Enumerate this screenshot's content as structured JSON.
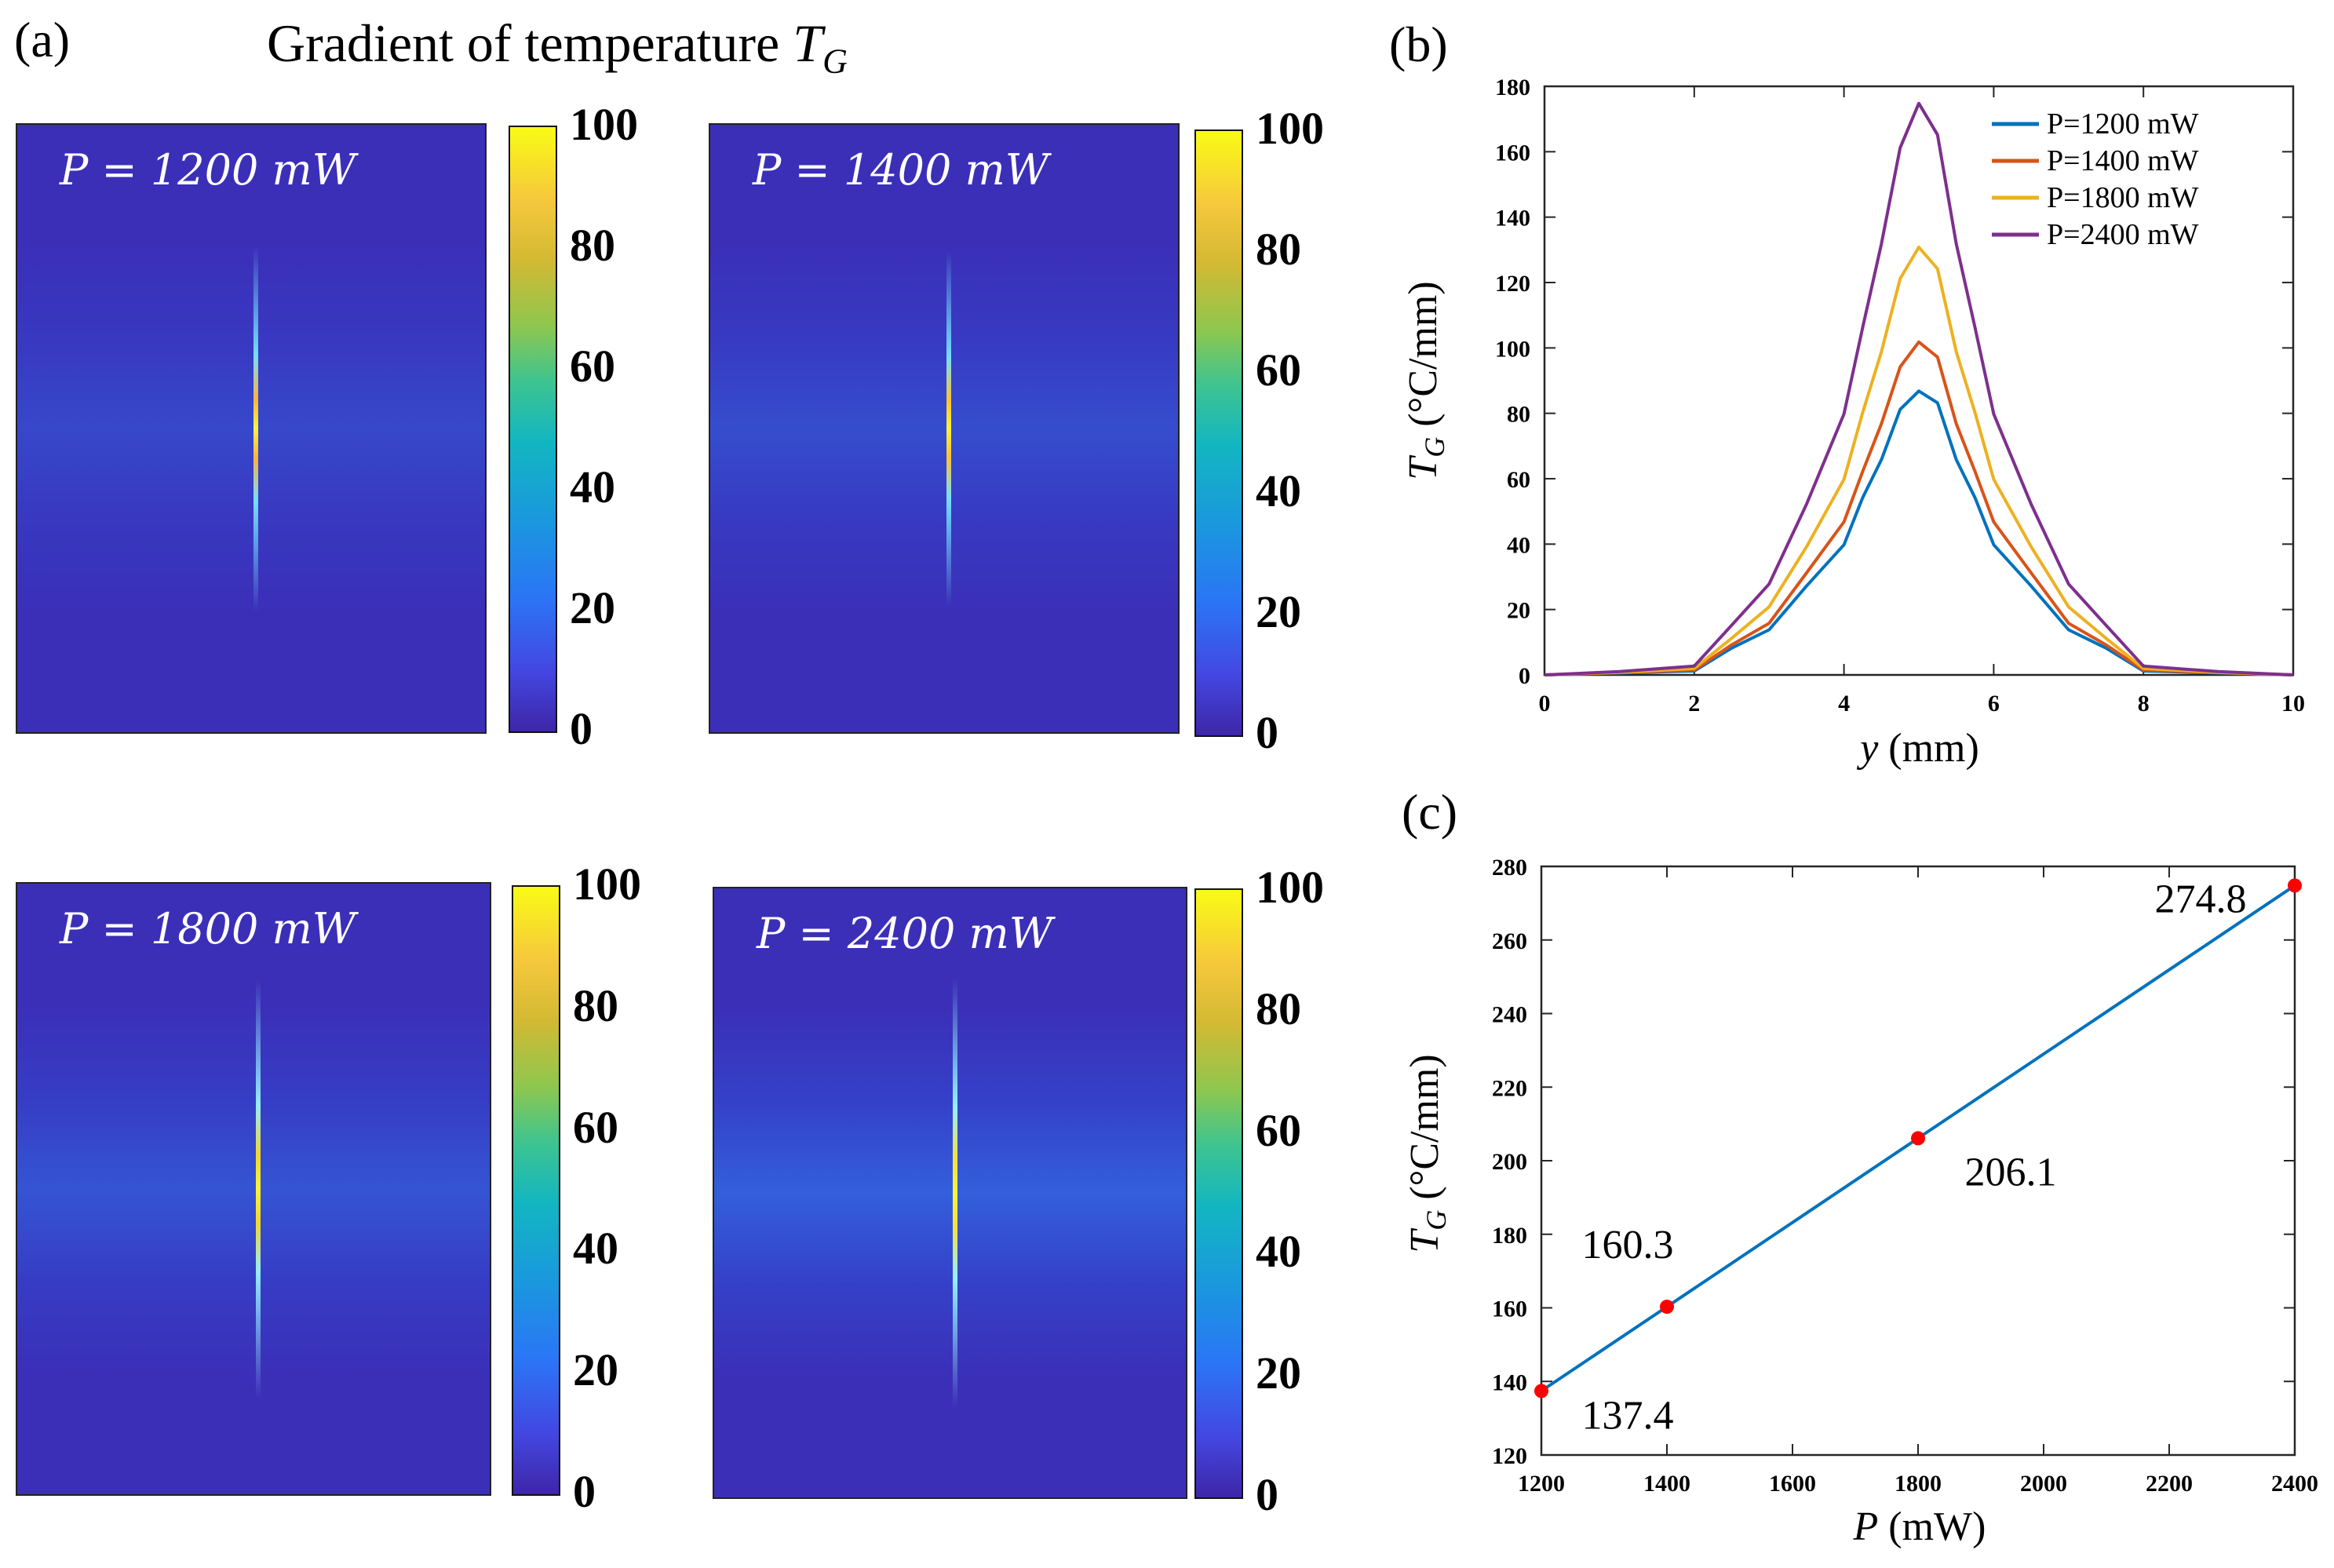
{
  "panel_a": {
    "label": "(a)",
    "title": "Gradient of temperature ",
    "title_var": "T",
    "title_sub": "G",
    "colorbar_ticks": [
      "100",
      "80",
      "60",
      "40",
      "20",
      "0"
    ],
    "maps": [
      {
        "label": "P = 1200 mW",
        "P": 1200
      },
      {
        "label": "P = 1400 mW",
        "P": 1400
      },
      {
        "label": "P = 1800 mW",
        "P": 1800
      },
      {
        "label": "P = 2400 mW",
        "P": 2400
      }
    ]
  },
  "panel_b": {
    "label": "(b)"
  },
  "panel_c": {
    "label": "(c)"
  },
  "chart_data": [
    {
      "type": "line",
      "xlabel_var": "y",
      "xlabel": "(mm)",
      "ylabel_var": "T",
      "ylabel_sub": "G",
      "ylabel": "(°C/mm)",
      "xlim": [
        0,
        10
      ],
      "ylim": [
        0,
        180
      ],
      "xticks": [
        0,
        2,
        4,
        6,
        8,
        10
      ],
      "yticks": [
        0,
        20,
        40,
        60,
        80,
        100,
        120,
        140,
        160,
        180
      ],
      "legend_position": "top-right",
      "x": [
        0,
        1,
        2,
        2.5,
        3,
        3.5,
        4,
        4.25,
        4.5,
        4.75,
        5,
        5.25,
        5.5,
        5.75,
        6,
        6.5,
        7,
        7.5,
        8,
        9,
        10
      ],
      "series": [
        {
          "name": "P=1200 mW",
          "color": "#0072bd",
          "values": [
            0,
            0.6,
            1.2,
            7,
            15,
            26,
            41,
            53,
            67,
            80,
            88,
            82,
            67,
            53,
            41,
            26,
            15,
            7,
            1.2,
            0.6,
            0
          ]
        },
        {
          "name": "P=1400 mW",
          "color": "#d95319",
          "values": [
            0,
            0.7,
            1.5,
            8,
            17,
            30,
            48,
            61,
            78,
            93,
            103,
            96,
            78,
            61,
            48,
            30,
            17,
            8,
            1.5,
            0.7,
            0
          ]
        },
        {
          "name": "P=1800 mW",
          "color": "#edb120",
          "values": [
            0,
            0.8,
            2,
            10,
            22,
            38,
            61,
            79,
            100,
            120,
            132,
            123,
            100,
            79,
            61,
            38,
            22,
            10,
            2,
            0.8,
            0
          ]
        },
        {
          "name": "P=2400 mW",
          "color": "#7e2f8e",
          "values": [
            0,
            1,
            2.7,
            14,
            29,
            51,
            81,
            105,
            133,
            160,
            176,
            164,
            133,
            105,
            81,
            51,
            29,
            14,
            2.7,
            1,
            0
          ]
        }
      ]
    },
    {
      "type": "line",
      "xlabel_var": "P",
      "xlabel": "(mW)",
      "ylabel_var": "T",
      "ylabel_sub": "G",
      "ylabel": "(°C/mm)",
      "xlim": [
        1200,
        2400
      ],
      "ylim": [
        120,
        280
      ],
      "xticks": [
        1200,
        1400,
        1600,
        1800,
        2000,
        2200,
        2400
      ],
      "yticks": [
        120,
        140,
        160,
        180,
        200,
        220,
        240,
        260,
        280
      ],
      "x": [
        1200,
        1400,
        1800,
        2400
      ],
      "values": [
        137.4,
        160.3,
        206.1,
        274.8
      ],
      "line_color": "#0072bd",
      "marker_color": "#ff0000",
      "data_labels": [
        "137.4",
        "160.3",
        "206.1",
        "274.8"
      ]
    }
  ]
}
